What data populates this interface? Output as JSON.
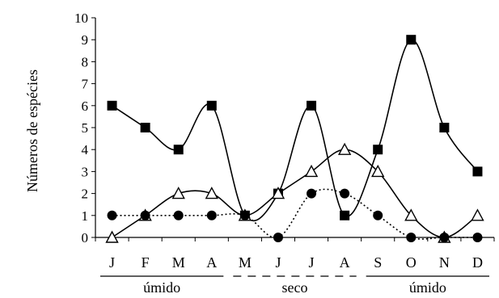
{
  "chart_data": {
    "type": "line",
    "title": "",
    "xlabel": "",
    "ylabel": "Números de espécies",
    "categories": [
      "J",
      "F",
      "M",
      "A",
      "M",
      "J",
      "J",
      "A",
      "S",
      "O",
      "N",
      "D"
    ],
    "ylim": [
      0,
      10
    ],
    "yticks": [
      0,
      1,
      2,
      3,
      4,
      5,
      6,
      7,
      8,
      9,
      10
    ],
    "grid": false,
    "legend": "none",
    "series": [
      {
        "marker": "filled-square",
        "line": "solid",
        "color": "#000000",
        "values": [
          6,
          5,
          4,
          6,
          1,
          2,
          6,
          1,
          4,
          9,
          5,
          3
        ]
      },
      {
        "marker": "open-triangle",
        "line": "solid",
        "color": "#000000",
        "values": [
          0,
          1,
          2,
          2,
          1,
          2,
          3,
          4,
          3,
          1,
          0,
          1
        ]
      },
      {
        "marker": "filled-circle",
        "line": "dotted",
        "color": "#000000",
        "values": [
          1,
          1,
          1,
          1,
          1,
          0,
          2,
          2,
          1,
          0,
          0,
          0
        ]
      }
    ],
    "season_groups": [
      {
        "label": "úmido",
        "start": 0,
        "end": 3,
        "line": "solid"
      },
      {
        "label": "seco",
        "start": 4,
        "end": 7,
        "line": "dashed"
      },
      {
        "label": "úmido",
        "start": 8,
        "end": 11,
        "line": "solid"
      }
    ]
  }
}
